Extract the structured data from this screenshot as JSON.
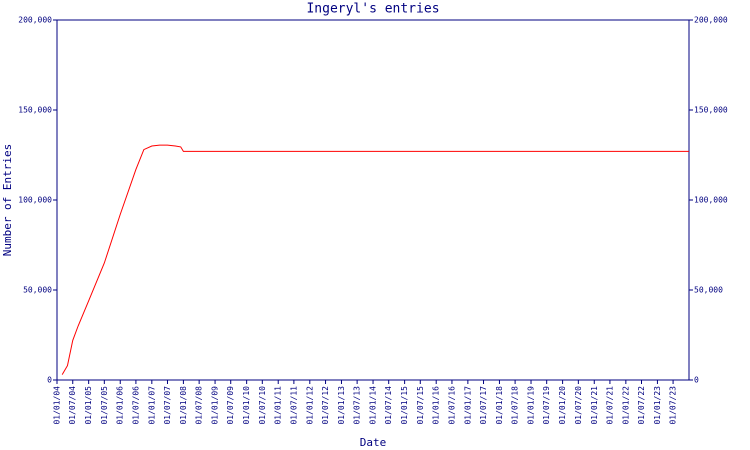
{
  "chart_data": {
    "type": "line",
    "title": "Ingeryl's entries",
    "x_label": "Date",
    "y_label": "Number of Entries",
    "x": [
      "2004-03-01",
      "2004-05-01",
      "2004-07-01",
      "2004-09-01",
      "2005-01-01",
      "2005-07-01",
      "2006-01-01",
      "2006-07-01",
      "2006-10-01",
      "2007-01-01",
      "2007-04-01",
      "2007-07-01",
      "2007-10-01",
      "2007-12-01",
      "2008-01-01",
      "2024-01-01"
    ],
    "series": [
      {
        "name": "Entries",
        "color": "#ff0000",
        "values": [
          3000,
          8000,
          22000,
          30000,
          44000,
          65000,
          92000,
          117000,
          128000,
          130000,
          130500,
          130500,
          130000,
          129500,
          127000,
          127000
        ]
      }
    ],
    "xlim": [
      "2004-01-01",
      "2024-01-01"
    ],
    "xticks": [
      {
        "value": "2004-01-01",
        "label": "01/01/04"
      },
      {
        "value": "2004-07-01",
        "label": "01/07/04"
      },
      {
        "value": "2005-01-01",
        "label": "01/01/05"
      },
      {
        "value": "2005-07-01",
        "label": "01/07/05"
      },
      {
        "value": "2006-01-01",
        "label": "01/01/06"
      },
      {
        "value": "2006-07-01",
        "label": "01/07/06"
      },
      {
        "value": "2007-01-01",
        "label": "01/01/07"
      },
      {
        "value": "2007-07-01",
        "label": "01/07/07"
      },
      {
        "value": "2008-01-01",
        "label": "01/01/08"
      },
      {
        "value": "2008-07-01",
        "label": "01/07/08"
      },
      {
        "value": "2009-01-01",
        "label": "01/01/09"
      },
      {
        "value": "2009-07-01",
        "label": "01/07/09"
      },
      {
        "value": "2010-01-01",
        "label": "01/01/10"
      },
      {
        "value": "2010-07-01",
        "label": "01/07/10"
      },
      {
        "value": "2011-01-01",
        "label": "01/01/11"
      },
      {
        "value": "2011-07-01",
        "label": "01/07/11"
      },
      {
        "value": "2012-01-01",
        "label": "01/01/12"
      },
      {
        "value": "2012-07-01",
        "label": "01/07/12"
      },
      {
        "value": "2013-01-01",
        "label": "01/01/13"
      },
      {
        "value": "2013-07-01",
        "label": "01/07/13"
      },
      {
        "value": "2014-01-01",
        "label": "01/01/14"
      },
      {
        "value": "2014-07-01",
        "label": "01/07/14"
      },
      {
        "value": "2015-01-01",
        "label": "01/01/15"
      },
      {
        "value": "2015-07-01",
        "label": "01/07/15"
      },
      {
        "value": "2016-01-01",
        "label": "01/01/16"
      },
      {
        "value": "2016-07-01",
        "label": "01/07/16"
      },
      {
        "value": "2017-01-01",
        "label": "01/01/17"
      },
      {
        "value": "2017-07-01",
        "label": "01/07/17"
      },
      {
        "value": "2018-01-01",
        "label": "01/01/18"
      },
      {
        "value": "2018-07-01",
        "label": "01/07/18"
      },
      {
        "value": "2019-01-01",
        "label": "01/01/19"
      },
      {
        "value": "2019-07-01",
        "label": "01/07/19"
      },
      {
        "value": "2020-01-01",
        "label": "01/01/20"
      },
      {
        "value": "2020-07-01",
        "label": "01/07/20"
      },
      {
        "value": "2021-01-01",
        "label": "01/01/21"
      },
      {
        "value": "2021-07-01",
        "label": "01/07/21"
      },
      {
        "value": "2022-01-01",
        "label": "01/01/22"
      },
      {
        "value": "2022-07-01",
        "label": "01/07/22"
      },
      {
        "value": "2023-01-01",
        "label": "01/01/23"
      },
      {
        "value": "2023-07-01",
        "label": "01/07/23"
      }
    ],
    "ylim": [
      0,
      200000
    ],
    "yticks": [
      {
        "value": 0,
        "label": "0"
      },
      {
        "value": 50000,
        "label": "50,000"
      },
      {
        "value": 100000,
        "label": "100,000"
      },
      {
        "value": 150000,
        "label": "150,000"
      },
      {
        "value": 200000,
        "label": "200,000"
      }
    ],
    "axis_color": "#000080",
    "grid": false
  }
}
